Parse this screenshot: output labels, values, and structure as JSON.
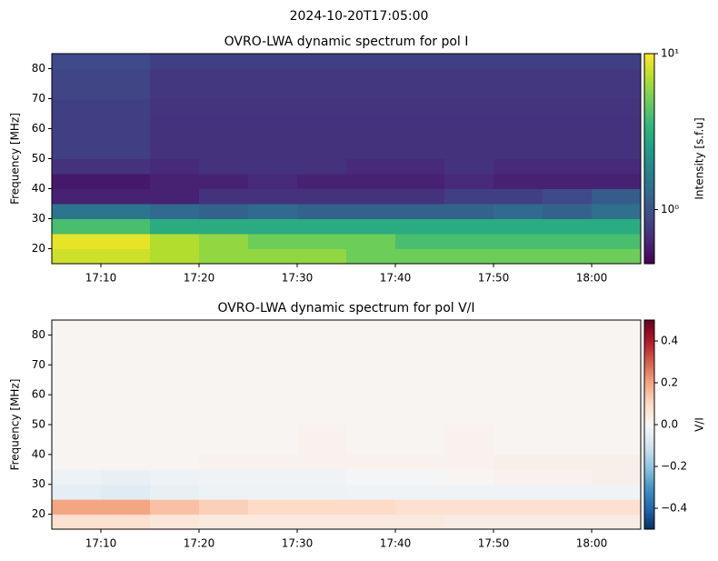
{
  "title": "2024-10-20T17:05:00",
  "chart_data": [
    {
      "type": "heatmap",
      "title": "OVRO-LWA dynamic spectrum for pol I",
      "ylabel": "Frequency [MHz]",
      "colorbar_label": "Intensity [s.f.u]",
      "cmap": "viridis",
      "color_scale": "log",
      "clim": [
        0.45,
        10
      ],
      "cticks": [
        {
          "value": 1,
          "label": "10⁰"
        },
        {
          "value": 10,
          "label": "10¹"
        }
      ],
      "x": [
        1025,
        1030,
        1035,
        1040,
        1045,
        1050,
        1055,
        1060,
        1065,
        1070,
        1075,
        1080,
        1085
      ],
      "y": [
        15,
        20,
        25,
        30,
        35,
        40,
        45,
        50,
        55,
        60,
        65,
        70,
        75,
        80,
        85
      ],
      "xlim": [
        1025,
        1085
      ],
      "xticks": [
        {
          "value": 1030,
          "label": "17:10"
        },
        {
          "value": 1040,
          "label": "17:20"
        },
        {
          "value": 1050,
          "label": "17:30"
        },
        {
          "value": 1060,
          "label": "17:40"
        },
        {
          "value": 1070,
          "label": "17:50"
        },
        {
          "value": 1080,
          "label": "18:00"
        }
      ],
      "ylim": [
        15,
        85
      ],
      "yticks": [
        20,
        30,
        40,
        50,
        60,
        70,
        80
      ],
      "z": [
        [
          8,
          8,
          7,
          6,
          6,
          6,
          5,
          5,
          5,
          5,
          5,
          5
        ],
        [
          9,
          9,
          7,
          6,
          5,
          5,
          5,
          4,
          4,
          4,
          4,
          4
        ],
        [
          4,
          4,
          3,
          3,
          3,
          3,
          3,
          3,
          3,
          3,
          3,
          3
        ],
        [
          1.5,
          1.5,
          1.3,
          1.2,
          1.3,
          1.2,
          1.2,
          1.2,
          1.2,
          1.3,
          1.2,
          1.4
        ],
        [
          0.6,
          0.6,
          0.6,
          0.7,
          0.7,
          0.7,
          0.7,
          0.7,
          0.8,
          0.8,
          0.9,
          1.1
        ],
        [
          0.55,
          0.55,
          0.6,
          0.6,
          0.65,
          0.6,
          0.6,
          0.6,
          0.65,
          0.6,
          0.6,
          0.6
        ],
        [
          0.7,
          0.7,
          0.65,
          0.7,
          0.7,
          0.7,
          0.65,
          0.65,
          0.7,
          0.65,
          0.65,
          0.65
        ],
        [
          0.8,
          0.8,
          0.7,
          0.7,
          0.7,
          0.7,
          0.7,
          0.7,
          0.7,
          0.7,
          0.7,
          0.7
        ],
        [
          0.8,
          0.8,
          0.7,
          0.7,
          0.7,
          0.7,
          0.7,
          0.7,
          0.7,
          0.7,
          0.7,
          0.7
        ],
        [
          0.8,
          0.8,
          0.7,
          0.7,
          0.7,
          0.7,
          0.7,
          0.7,
          0.7,
          0.7,
          0.7,
          0.7
        ],
        [
          0.8,
          0.8,
          0.72,
          0.72,
          0.72,
          0.72,
          0.72,
          0.72,
          0.72,
          0.72,
          0.72,
          0.72
        ],
        [
          0.85,
          0.85,
          0.75,
          0.75,
          0.75,
          0.75,
          0.75,
          0.75,
          0.75,
          0.75,
          0.75,
          0.75
        ],
        [
          0.85,
          0.85,
          0.75,
          0.75,
          0.75,
          0.75,
          0.75,
          0.75,
          0.75,
          0.75,
          0.75,
          0.75
        ],
        [
          0.9,
          0.9,
          0.8,
          0.8,
          0.8,
          0.8,
          0.8,
          0.8,
          0.8,
          0.8,
          0.8,
          0.8
        ]
      ]
    },
    {
      "type": "heatmap",
      "title": "OVRO-LWA dynamic spectrum for pol V/I",
      "ylabel": "Frequency [MHz]",
      "colorbar_label": "V/I",
      "cmap": "RdBu_r",
      "color_scale": "linear",
      "clim": [
        -0.5,
        0.5
      ],
      "cticks": [
        {
          "value": -0.4,
          "label": "−0.4"
        },
        {
          "value": -0.2,
          "label": "−0.2"
        },
        {
          "value": 0,
          "label": "0.0"
        },
        0.2,
        0.4
      ],
      "x": [
        1025,
        1030,
        1035,
        1040,
        1045,
        1050,
        1055,
        1060,
        1065,
        1070,
        1075,
        1080,
        1085
      ],
      "y": [
        15,
        20,
        25,
        30,
        35,
        40,
        45,
        50,
        55,
        60,
        65,
        70,
        75,
        80,
        85
      ],
      "xlim": [
        1025,
        1085
      ],
      "xticks": [
        {
          "value": 1030,
          "label": "17:10"
        },
        {
          "value": 1040,
          "label": "17:20"
        },
        {
          "value": 1050,
          "label": "17:30"
        },
        {
          "value": 1060,
          "label": "17:40"
        },
        {
          "value": 1070,
          "label": "17:50"
        },
        {
          "value": 1080,
          "label": "18:00"
        }
      ],
      "ylim": [
        15,
        85
      ],
      "yticks": [
        20,
        30,
        40,
        50,
        60,
        70,
        80
      ],
      "z": [
        [
          0.08,
          0.08,
          0.06,
          0.05,
          0.05,
          0.05,
          0.05,
          0.05,
          0.04,
          0.04,
          0.04,
          0.04
        ],
        [
          0.2,
          0.2,
          0.15,
          0.12,
          0.1,
          0.1,
          0.1,
          0.08,
          0.08,
          0.08,
          0.08,
          0.08
        ],
        [
          -0.05,
          -0.06,
          -0.04,
          -0.03,
          -0.03,
          -0.03,
          -0.02,
          -0.02,
          -0.02,
          -0.02,
          -0.02,
          -0.02
        ],
        [
          -0.03,
          -0.04,
          -0.03,
          -0.02,
          -0.02,
          -0.02,
          -0.01,
          -0.01,
          0.01,
          0.02,
          0.02,
          0.03
        ],
        [
          0.01,
          0.01,
          0.01,
          0.02,
          0.02,
          0.02,
          0.02,
          0.02,
          0.02,
          0.03,
          0.03,
          0.03
        ],
        [
          0.01,
          0.01,
          0.01,
          0.01,
          0.01,
          0.02,
          0.01,
          0.01,
          0.02,
          0.01,
          0.01,
          0.01
        ],
        [
          0.01,
          0.01,
          0.01,
          0.01,
          0.01,
          0.02,
          0.01,
          0.01,
          0.02,
          0.01,
          0.01,
          0.01
        ],
        [
          0.01,
          0.01,
          0.01,
          0.01,
          0.01,
          0.01,
          0.01,
          0.01,
          0.01,
          0.01,
          0.01,
          0.01
        ],
        [
          0.01,
          0.01,
          0.01,
          0.01,
          0.01,
          0.01,
          0.01,
          0.01,
          0.01,
          0.01,
          0.01,
          0.01
        ],
        [
          0.01,
          0.01,
          0.01,
          0.01,
          0.01,
          0.01,
          0.01,
          0.01,
          0.01,
          0.01,
          0.01,
          0.01
        ],
        [
          0.01,
          0.01,
          0.01,
          0.01,
          0.01,
          0.01,
          0.01,
          0.01,
          0.01,
          0.01,
          0.01,
          0.01
        ],
        [
          0.01,
          0.01,
          0.01,
          0.01,
          0.01,
          0.01,
          0.01,
          0.01,
          0.01,
          0.01,
          0.01,
          0.01
        ],
        [
          0.01,
          0.01,
          0.01,
          0.01,
          0.01,
          0.01,
          0.01,
          0.01,
          0.01,
          0.01,
          0.01,
          0.01
        ],
        [
          0.01,
          0.01,
          0.01,
          0.01,
          0.01,
          0.01,
          0.01,
          0.01,
          0.01,
          0.01,
          0.01,
          0.01
        ]
      ]
    }
  ]
}
